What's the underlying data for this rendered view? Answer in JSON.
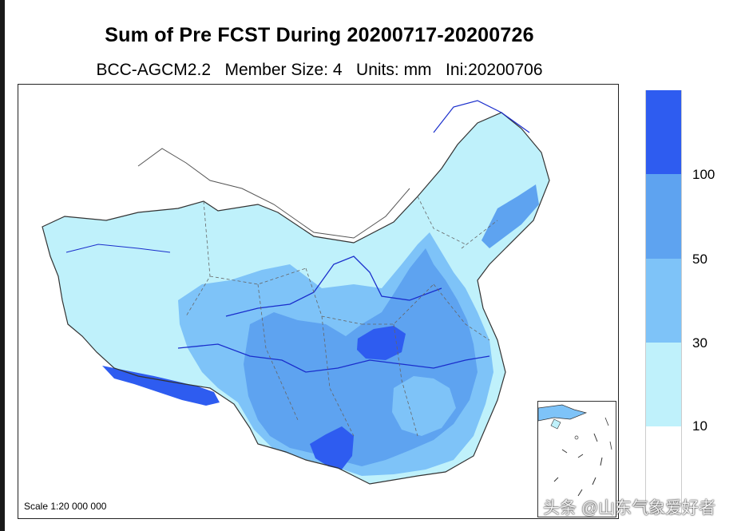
{
  "header": {
    "title": "Sum of Pre FCST During 20200717-20200726",
    "subtitle": "BCC-AGCM2.2   Member Size: 4   Units: mm   Ini:20200706"
  },
  "map": {
    "region": "China",
    "scale_label": "Scale 1:20 000 000",
    "inset": "South China Sea"
  },
  "legend": {
    "labels": [
      "100",
      "50",
      "30",
      "10"
    ],
    "colors": [
      "#2e5cf0",
      "#5ea3f0",
      "#7ec3f8",
      "#bff1fb",
      "#ffffff"
    ]
  },
  "watermark": "头条 @山东气象爱好者"
}
